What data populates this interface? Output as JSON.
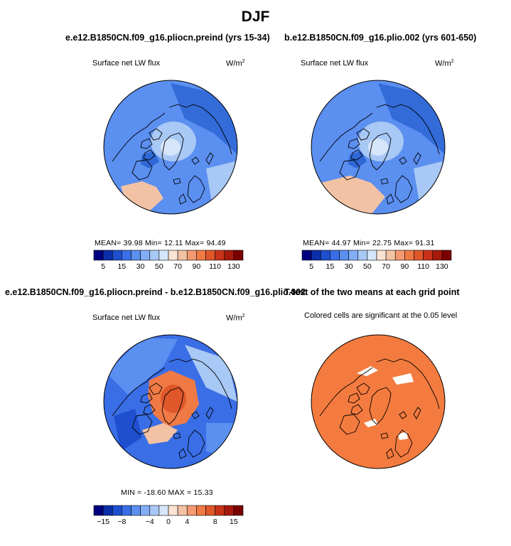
{
  "figure": {
    "title": "DJF",
    "colors": {
      "ocean_dark_blue": "#2f67d6",
      "mid_blue": "#5b8ff0",
      "light_blue": "#a8c8f5",
      "pale_blue": "#d6e6fa",
      "peach": "#f3c2a4",
      "orange": "#f07a46",
      "sig_orange": "#f47b3f",
      "coast": "#000000"
    }
  },
  "panels": {
    "p1": {
      "title": "e.e12.B1850CN.f09_g16.pliocn.preind (yrs 15-34)",
      "left_label": "Surface net LW flux",
      "unit_base": "W/m",
      "unit_sup": "2",
      "stats": "MEAN=   39.98   Min=   12.11   Max=   94.49"
    },
    "p2": {
      "title": "b.e12.B1850CN.f09_g16.plio.002 (yrs 601-650)",
      "left_label": "Surface net LW flux",
      "unit_base": "W/m",
      "unit_sup": "2",
      "stats": "MEAN=   44.97   Min=   22.75   Max=   91.31"
    },
    "p3": {
      "title": "e.e12.B1850CN.f09_g16.pliocn.preind - b.e12.B1850CN.f09_g16.plio.002",
      "left_label": "Surface net LW flux",
      "unit_base": "W/m",
      "unit_sup": "2",
      "stats": "MIN = -18.60  MAX =  15.33"
    },
    "p4": {
      "title": "T-test of the two means at each grid point",
      "left_label": "Colored cells are significant at the 0.05 level"
    }
  },
  "chart_data": [
    {
      "type": "heatmap",
      "projection": "polar stereographic (North Pole)",
      "title": "e.e12.B1850CN.f09_g16.pliocn.preind (yrs 15-34)",
      "variable": "Surface net LW flux",
      "units": "W/m2",
      "stats": {
        "mean": 39.98,
        "min": 12.11,
        "max": 94.49
      },
      "colorbar": {
        "levels": [
          5,
          10,
          15,
          20,
          30,
          40,
          50,
          60,
          70,
          80,
          90,
          100,
          110,
          120,
          130
        ],
        "tick_labels": [
          "5",
          "15",
          "30",
          "50",
          "70",
          "90",
          "110",
          "130"
        ],
        "colors": [
          "#00007f",
          "#0a2fa8",
          "#1f4fcf",
          "#3a6ee6",
          "#5b8ff0",
          "#82adf5",
          "#a8c8f5",
          "#d6e6fa",
          "#fbe3d3",
          "#f3c2a4",
          "#f39a72",
          "#f07a46",
          "#e0572a",
          "#c93218",
          "#a61a0c",
          "#7a0000"
        ]
      }
    },
    {
      "type": "heatmap",
      "projection": "polar stereographic (North Pole)",
      "title": "b.e12.B1850CN.f09_g16.plio.002 (yrs 601-650)",
      "variable": "Surface net LW flux",
      "units": "W/m2",
      "stats": {
        "mean": 44.97,
        "min": 22.75,
        "max": 91.31
      },
      "colorbar": {
        "levels": [
          5,
          10,
          15,
          20,
          30,
          40,
          50,
          60,
          70,
          80,
          90,
          100,
          110,
          120,
          130
        ],
        "tick_labels": [
          "5",
          "15",
          "30",
          "50",
          "70",
          "90",
          "110",
          "130"
        ],
        "colors": [
          "#00007f",
          "#0a2fa8",
          "#1f4fcf",
          "#3a6ee6",
          "#5b8ff0",
          "#82adf5",
          "#a8c8f5",
          "#d6e6fa",
          "#fbe3d3",
          "#f3c2a4",
          "#f39a72",
          "#f07a46",
          "#e0572a",
          "#c93218",
          "#a61a0c",
          "#7a0000"
        ]
      }
    },
    {
      "type": "heatmap",
      "projection": "polar stereographic (North Pole)",
      "title": "e.e12.B1850CN.f09_g16.pliocn.preind - b.e12.B1850CN.f09_g16.plio.002",
      "variable": "Surface net LW flux",
      "units": "W/m2",
      "stats": {
        "min": -18.6,
        "max": 15.33
      },
      "colorbar": {
        "levels": [
          -18,
          -15,
          -12,
          -8,
          -6,
          -4,
          -2,
          0,
          2,
          4,
          6,
          8,
          12,
          15,
          18
        ],
        "tick_labels": [
          "-15",
          "-8",
          "-4",
          "0",
          "4",
          "8",
          "15"
        ],
        "colors": [
          "#00007f",
          "#0a2fa8",
          "#1f4fcf",
          "#3a6ee6",
          "#5b8ff0",
          "#82adf5",
          "#a8c8f5",
          "#d6e6fa",
          "#fbe3d3",
          "#f3c2a4",
          "#f39a72",
          "#f07a46",
          "#e0572a",
          "#c93218",
          "#a61a0c",
          "#7a0000"
        ]
      }
    },
    {
      "type": "heatmap",
      "projection": "polar stereographic (North Pole)",
      "title": "T-test of the two means at each grid point",
      "note": "Colored cells are significant at the 0.05 level",
      "significance_level": 0.05
    }
  ]
}
